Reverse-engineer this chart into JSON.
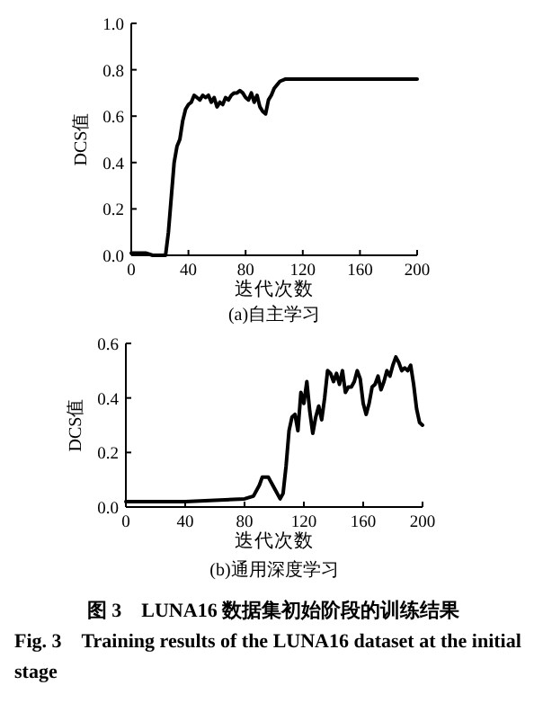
{
  "chart_data": [
    {
      "type": "line",
      "title": "(a)自主学习",
      "xlabel": "迭代次数",
      "ylabel": "DCS值",
      "xlim": [
        0,
        200
      ],
      "ylim": [
        0,
        1
      ],
      "xticks": [
        0,
        40,
        80,
        120,
        160,
        200
      ],
      "yticks": [
        {
          "value": 0,
          "label": "0.0"
        },
        {
          "value": 0.2,
          "label": "0.2"
        },
        {
          "value": 0.4,
          "label": "0.4"
        },
        {
          "value": 0.6,
          "label": "0.6"
        },
        {
          "value": 0.8,
          "label": "0.8"
        },
        {
          "value": 1,
          "label": "1.0"
        }
      ],
      "grid": false,
      "series": [
        {
          "color": "#000000",
          "x": [
            0,
            10,
            15,
            24,
            26,
            28,
            30,
            32,
            34,
            36,
            38,
            40,
            42,
            44,
            46,
            48,
            50,
            52,
            54,
            56,
            58,
            60,
            62,
            64,
            66,
            68,
            70,
            72,
            74,
            76,
            78,
            80,
            82,
            84,
            86,
            88,
            90,
            92,
            94,
            96,
            98,
            100,
            104,
            108,
            120,
            160,
            200
          ],
          "values": [
            0.01,
            0.01,
            0.0,
            0.0,
            0.1,
            0.25,
            0.4,
            0.47,
            0.5,
            0.58,
            0.63,
            0.65,
            0.66,
            0.69,
            0.68,
            0.67,
            0.69,
            0.68,
            0.69,
            0.66,
            0.68,
            0.64,
            0.66,
            0.65,
            0.68,
            0.67,
            0.69,
            0.7,
            0.7,
            0.71,
            0.7,
            0.68,
            0.67,
            0.7,
            0.66,
            0.69,
            0.64,
            0.62,
            0.61,
            0.67,
            0.69,
            0.72,
            0.75,
            0.76,
            0.76,
            0.76,
            0.76
          ]
        }
      ]
    },
    {
      "type": "line",
      "title": "(b)通用深度学习",
      "xlabel": "迭代次数",
      "ylabel": "DCS值",
      "xlim": [
        0,
        200
      ],
      "ylim": [
        0,
        0.6
      ],
      "xticks": [
        0,
        40,
        80,
        120,
        160,
        200
      ],
      "yticks": [
        {
          "value": 0,
          "label": "0.0"
        },
        {
          "value": 0.2,
          "label": "0.2"
        },
        {
          "value": 0.4,
          "label": "0.4"
        },
        {
          "value": 0.6,
          "label": "0.6"
        }
      ],
      "grid": false,
      "annotations": [
        "图 3　LUNA16 数据集初始阶段的训练结果",
        "Fig. 3　Training results of the LUNA16 dataset at the initial stage"
      ],
      "series": [
        {
          "color": "#000000",
          "x": [
            0,
            40,
            60,
            80,
            86,
            90,
            92,
            96,
            100,
            104,
            106,
            108,
            110,
            112,
            114,
            116,
            118,
            120,
            122,
            124,
            126,
            128,
            130,
            132,
            134,
            136,
            138,
            140,
            142,
            144,
            146,
            148,
            150,
            152,
            154,
            156,
            158,
            160,
            162,
            164,
            166,
            168,
            170,
            172,
            174,
            176,
            178,
            180,
            182,
            184,
            186,
            188,
            190,
            192,
            194,
            196,
            198,
            200
          ],
          "values": [
            0.02,
            0.02,
            0.025,
            0.03,
            0.04,
            0.08,
            0.11,
            0.11,
            0.07,
            0.03,
            0.05,
            0.15,
            0.28,
            0.33,
            0.34,
            0.28,
            0.42,
            0.38,
            0.46,
            0.35,
            0.27,
            0.33,
            0.37,
            0.32,
            0.4,
            0.5,
            0.49,
            0.46,
            0.49,
            0.45,
            0.5,
            0.42,
            0.44,
            0.44,
            0.46,
            0.5,
            0.47,
            0.38,
            0.34,
            0.38,
            0.44,
            0.45,
            0.48,
            0.43,
            0.46,
            0.5,
            0.48,
            0.52,
            0.55,
            0.53,
            0.5,
            0.51,
            0.5,
            0.52,
            0.45,
            0.36,
            0.31,
            0.3
          ]
        }
      ]
    }
  ]
}
